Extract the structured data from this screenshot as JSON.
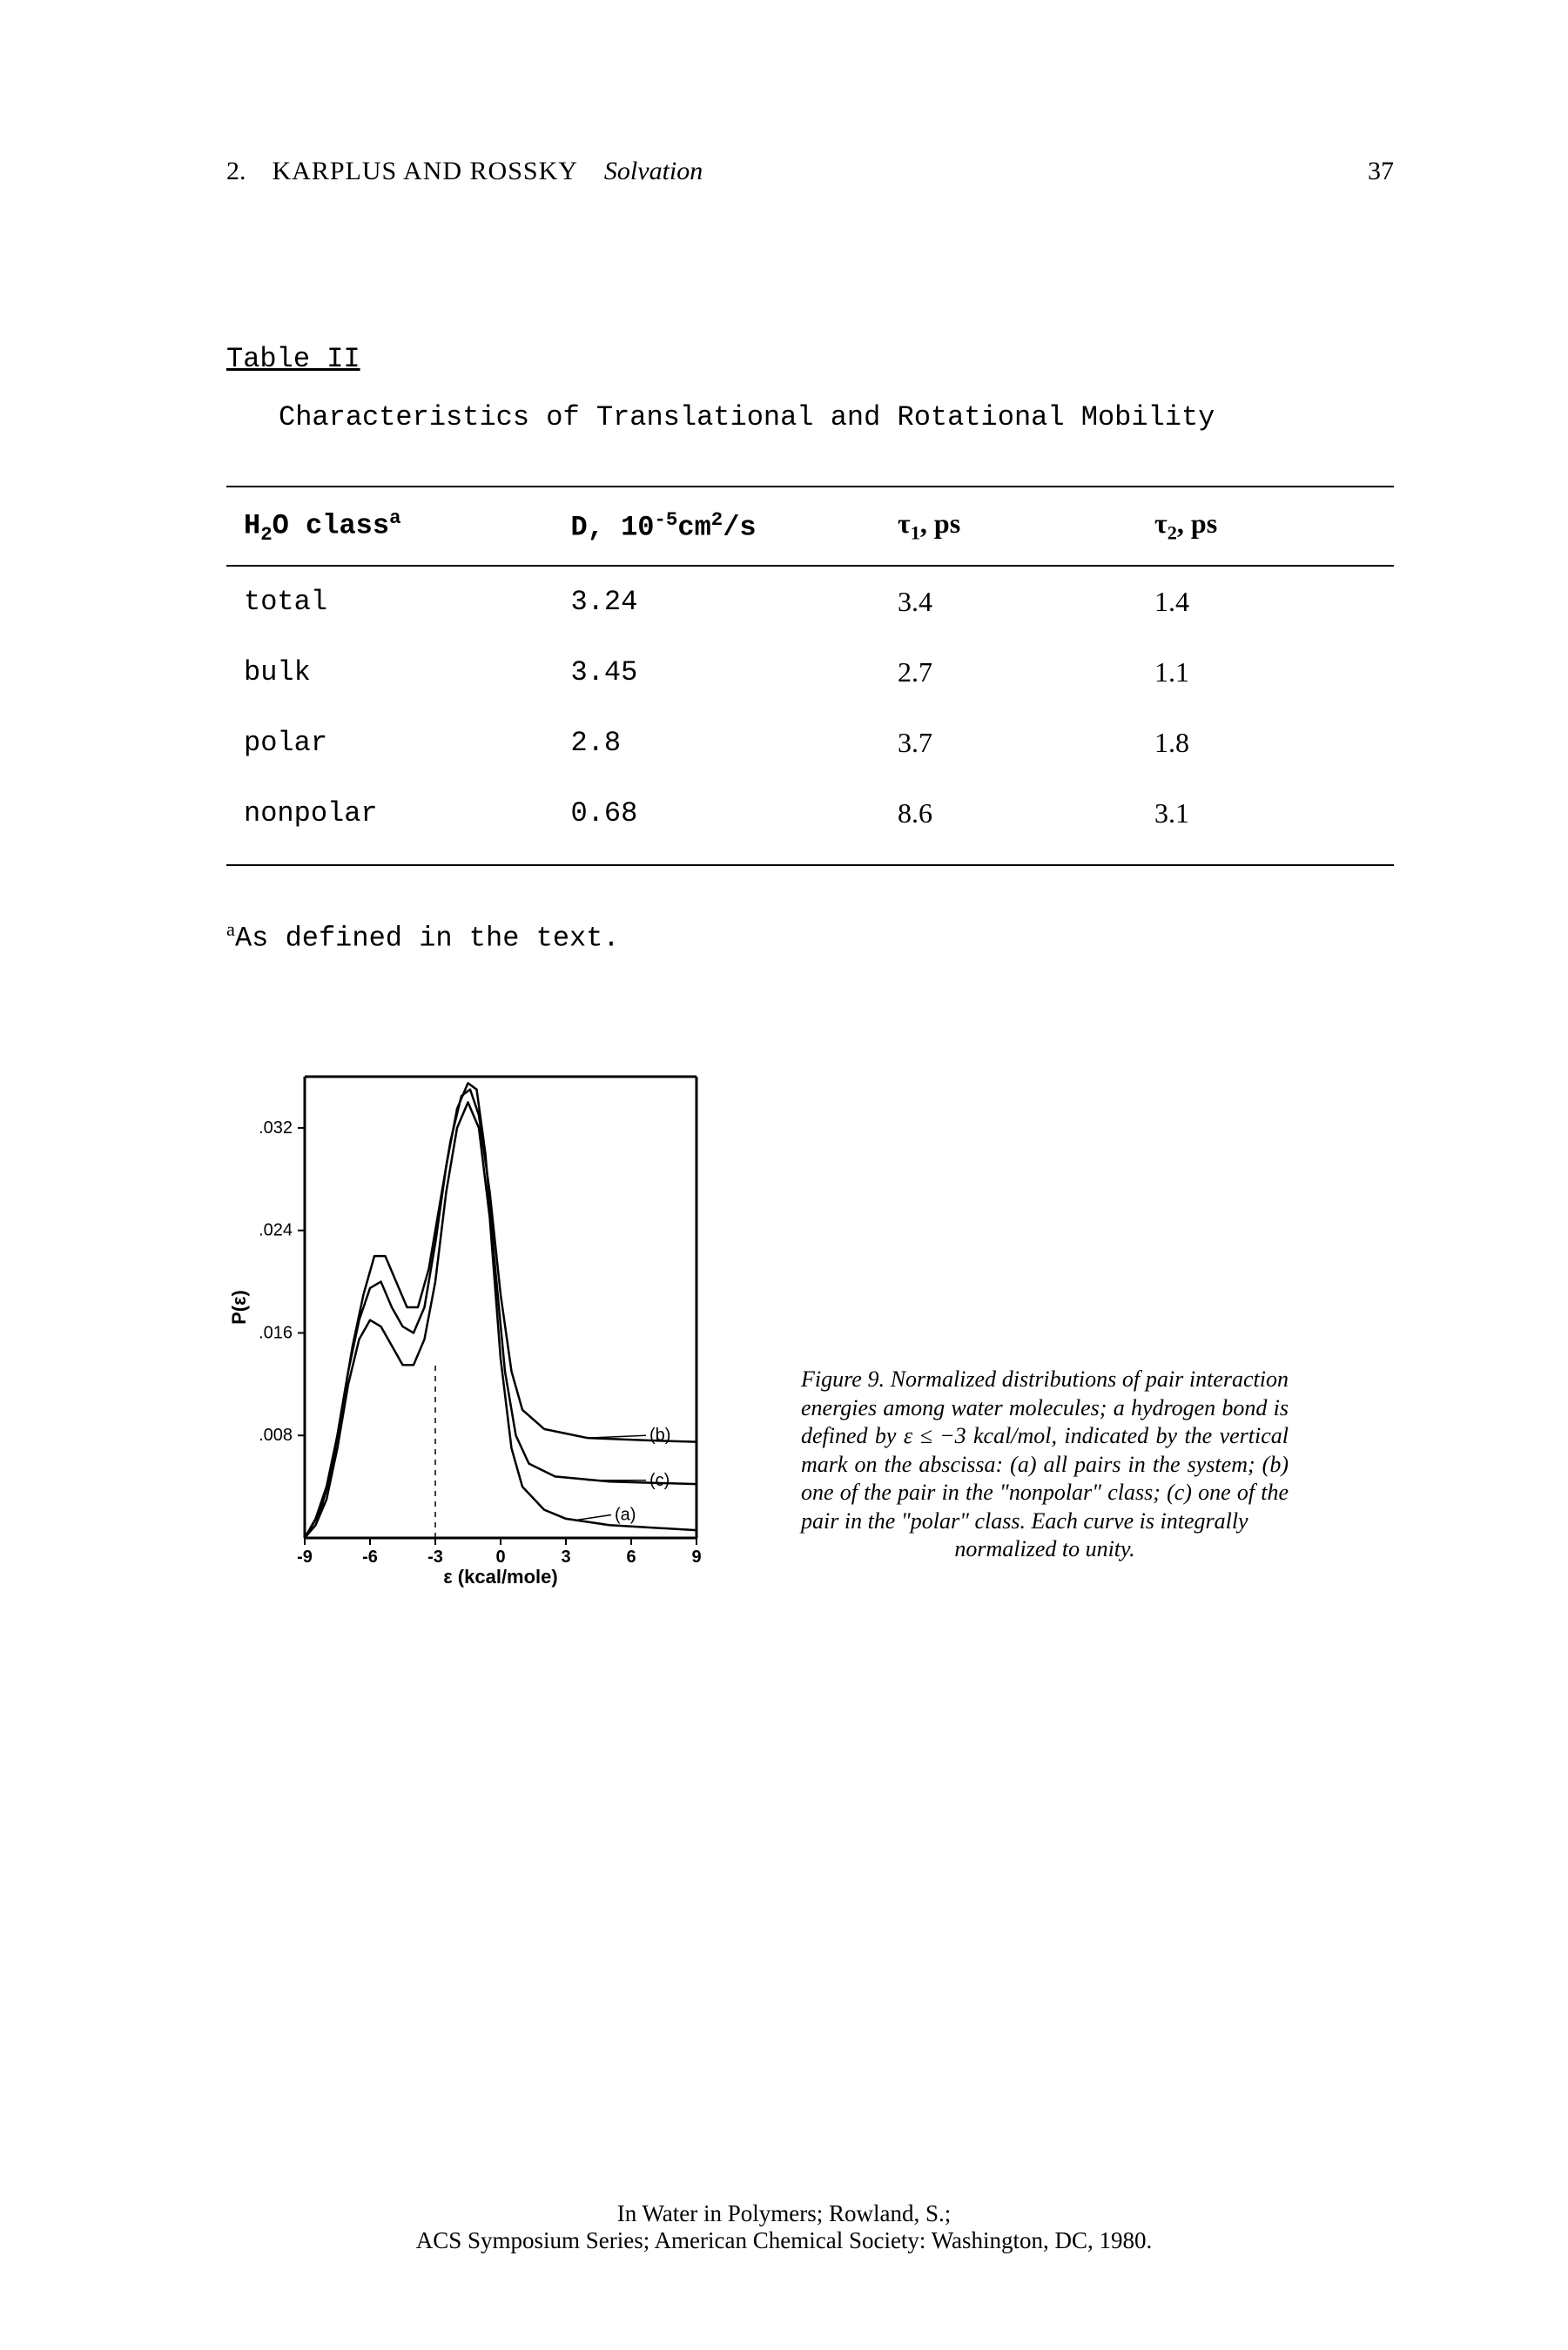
{
  "header": {
    "chapter": "2.",
    "authors": "KARPLUS AND ROSSKY",
    "section": "Solvation",
    "page": "37"
  },
  "table": {
    "label": "Table II",
    "title": "Characteristics of Translational and Rotational Mobility",
    "columns": {
      "c1_prefix": "H",
      "c1_sub": "2",
      "c1_mid": "O class",
      "c1_sup": "a",
      "c2_prefix": "D, 10",
      "c2_sup": "-5",
      "c2_mid": "cm",
      "c2_sup2": "2",
      "c2_suffix": "/s",
      "c3_prefix": "τ",
      "c3_sub": "1",
      "c3_suffix": ", ps",
      "c4_prefix": "τ",
      "c4_sub": "2",
      "c4_suffix": ", ps"
    },
    "rows": [
      {
        "class": "total",
        "D": "3.24",
        "t1": "3.4",
        "t2": "1.4"
      },
      {
        "class": "bulk",
        "D": "3.45",
        "t1": "2.7",
        "t2": "1.1"
      },
      {
        "class": "polar",
        "D": "2.8",
        "t1": "3.7",
        "t2": "1.8"
      },
      {
        "class": "nonpolar",
        "D": "0.68",
        "t1": "8.6",
        "t2": "3.1"
      }
    ],
    "footnote_sup": "a",
    "footnote": "As defined in the text."
  },
  "figure": {
    "type": "line",
    "xlim": [
      -9,
      9
    ],
    "ylim": [
      0,
      0.036
    ],
    "xticks": [
      -9,
      -6,
      -3,
      0,
      3,
      6,
      9
    ],
    "yticks": [
      0.008,
      0.016,
      0.024,
      0.032
    ],
    "ytick_labels": [
      ".008",
      ".016",
      ".024",
      ".032"
    ],
    "xlabel": "ε (kcal/mole)",
    "ylabel": "P(ε)",
    "label_fontsize": 22,
    "tick_fontsize": 20,
    "axis_color": "#000000",
    "background_color": "#ffffff",
    "line_color": "#000000",
    "line_width": 2.5,
    "vline_x": -3,
    "vline_dash": "6,6",
    "series": {
      "a": {
        "label": "(a)",
        "label_x": 6.2,
        "label_y": 0.0018,
        "points": [
          [
            -9,
            0
          ],
          [
            -8.5,
            0.001
          ],
          [
            -8,
            0.003
          ],
          [
            -7.5,
            0.007
          ],
          [
            -7,
            0.012
          ],
          [
            -6.5,
            0.0155
          ],
          [
            -6,
            0.017
          ],
          [
            -5.5,
            0.0165
          ],
          [
            -5,
            0.015
          ],
          [
            -4.5,
            0.0135
          ],
          [
            -4,
            0.0135
          ],
          [
            -3.5,
            0.0155
          ],
          [
            -3,
            0.02
          ],
          [
            -2.5,
            0.027
          ],
          [
            -2,
            0.032
          ],
          [
            -1.5,
            0.034
          ],
          [
            -1,
            0.032
          ],
          [
            -0.5,
            0.025
          ],
          [
            0,
            0.014
          ],
          [
            0.5,
            0.007
          ],
          [
            1,
            0.004
          ],
          [
            2,
            0.0022
          ],
          [
            3,
            0.0015
          ],
          [
            5,
            0.001
          ],
          [
            9,
            0.0006
          ]
        ]
      },
      "b": {
        "label": "(b)",
        "label_x": 7.8,
        "label_y": 0.008,
        "points": [
          [
            -9,
            0
          ],
          [
            -8.3,
            0.002
          ],
          [
            -7.8,
            0.005
          ],
          [
            -7.3,
            0.01
          ],
          [
            -6.8,
            0.015
          ],
          [
            -6.3,
            0.019
          ],
          [
            -5.8,
            0.022
          ],
          [
            -5.3,
            0.022
          ],
          [
            -4.8,
            0.02
          ],
          [
            -4.3,
            0.018
          ],
          [
            -3.8,
            0.018
          ],
          [
            -3.3,
            0.021
          ],
          [
            -2.8,
            0.026
          ],
          [
            -2.3,
            0.031
          ],
          [
            -1.8,
            0.0345
          ],
          [
            -1.4,
            0.035
          ],
          [
            -1,
            0.033
          ],
          [
            -0.5,
            0.027
          ],
          [
            0,
            0.019
          ],
          [
            0.5,
            0.013
          ],
          [
            1,
            0.01
          ],
          [
            2,
            0.0085
          ],
          [
            4,
            0.0078
          ],
          [
            7,
            0.0076
          ],
          [
            9,
            0.0075
          ]
        ]
      },
      "c": {
        "label": "(c)",
        "label_x": 7.8,
        "label_y": 0.0045,
        "points": [
          [
            -9,
            0
          ],
          [
            -8.5,
            0.0015
          ],
          [
            -8,
            0.004
          ],
          [
            -7.5,
            0.008
          ],
          [
            -7,
            0.013
          ],
          [
            -6.5,
            0.017
          ],
          [
            -6,
            0.0195
          ],
          [
            -5.5,
            0.02
          ],
          [
            -5,
            0.018
          ],
          [
            -4.5,
            0.0165
          ],
          [
            -4,
            0.016
          ],
          [
            -3.5,
            0.018
          ],
          [
            -3,
            0.023
          ],
          [
            -2.5,
            0.029
          ],
          [
            -2,
            0.0335
          ],
          [
            -1.5,
            0.0355
          ],
          [
            -1.1,
            0.035
          ],
          [
            -0.7,
            0.03
          ],
          [
            -0.3,
            0.022
          ],
          [
            0.2,
            0.013
          ],
          [
            0.7,
            0.008
          ],
          [
            1.3,
            0.0058
          ],
          [
            2.5,
            0.0048
          ],
          [
            5,
            0.0044
          ],
          [
            9,
            0.0042
          ]
        ]
      }
    },
    "caption_lead": "Figure 9.   Normalized distributions of pair interaction energies among water molecules; a hydrogen bond is defined by ε ≤ −3 kcal/mol, indicated by the vertical mark on the abscissa: (a) all pairs in the system; (b) one of the pair in the \"nonpolar\" class; (c) one of the pair in the \"polar\" class. Each curve is integrally",
    "caption_last": "normalized to unity."
  },
  "footer": {
    "line1": "In Water in Polymers; Rowland, S.;",
    "line2": "ACS Symposium Series; American Chemical Society: Washington, DC, 1980."
  }
}
